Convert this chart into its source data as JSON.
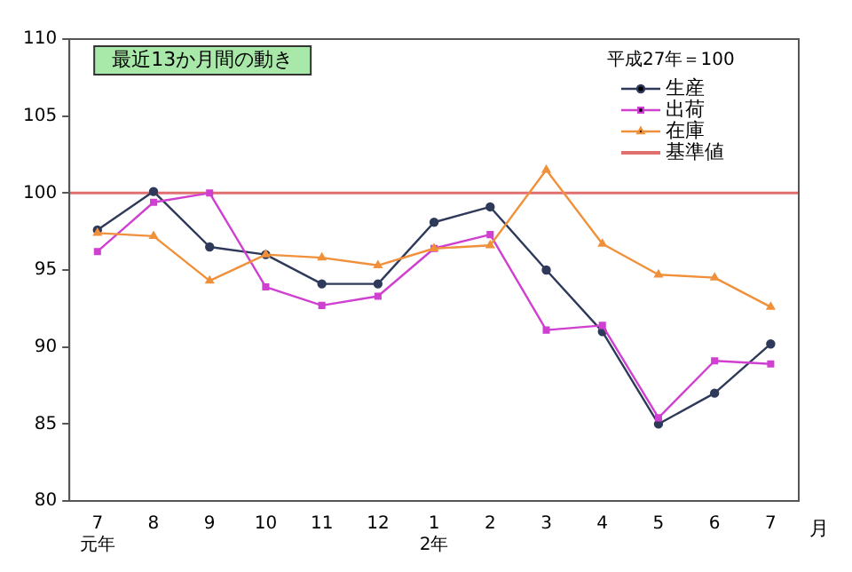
{
  "chart_data": {
    "type": "line",
    "title": "最近13か月間の動き",
    "xlabel": "月",
    "categories": [
      "7\n元年",
      "8",
      "9",
      "10",
      "11",
      "12",
      "1\n2年",
      "2",
      "3",
      "4",
      "5",
      "6",
      "7"
    ],
    "series": [
      {
        "name": "生産",
        "color": "#2f3a5a",
        "marker": "circle",
        "values": [
          97.6,
          100.1,
          96.5,
          96.0,
          94.1,
          94.1,
          98.1,
          99.1,
          95.0,
          91.0,
          85.0,
          87.0,
          90.2
        ]
      },
      {
        "name": "出荷",
        "color": "#d040d0",
        "marker": "square",
        "values": [
          96.2,
          99.4,
          100.0,
          93.9,
          92.7,
          93.3,
          96.4,
          97.3,
          91.1,
          91.4,
          85.4,
          89.1,
          88.9
        ]
      },
      {
        "name": "在庫",
        "color": "#f0903a",
        "marker": "triangle",
        "values": [
          97.4,
          97.2,
          94.3,
          96.0,
          95.8,
          95.3,
          96.4,
          96.6,
          101.5,
          96.7,
          94.7,
          94.5,
          92.6
        ]
      }
    ],
    "ref_lines": [
      {
        "axis": "y",
        "value": 100,
        "label": "基準値",
        "color": "#e07070"
      }
    ],
    "annotations": [
      "平成27年＝100"
    ],
    "ylim": [
      80,
      110
    ],
    "yticks": [
      80,
      85,
      90,
      95,
      100,
      105,
      110
    ],
    "grid": false,
    "legend": "top right"
  }
}
